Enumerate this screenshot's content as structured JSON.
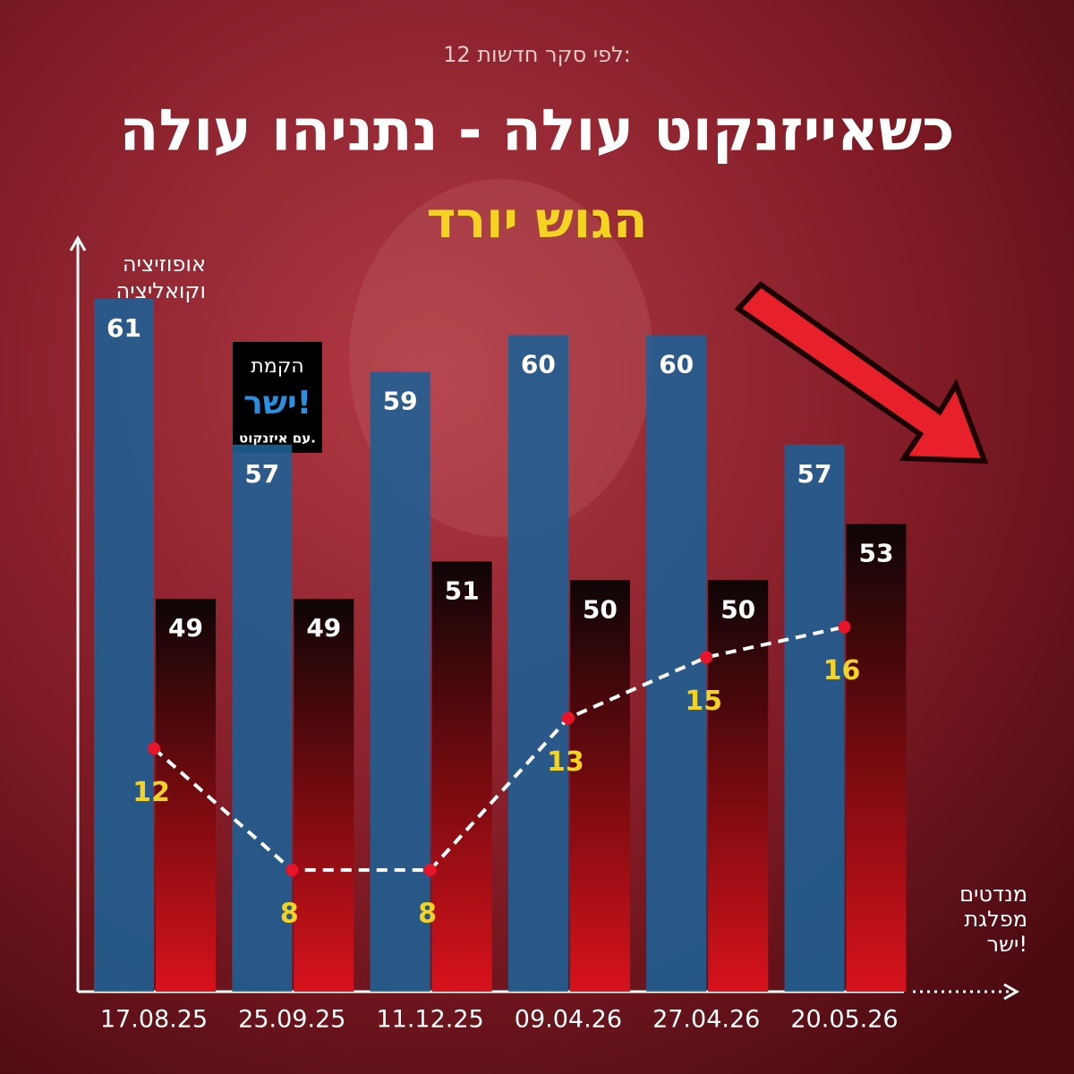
{
  "chart_data": {
    "type": "bar_line",
    "note": "לפי סקר חדשות 12:",
    "title": "כשאייזנקוט עולה - נתניהו עולה",
    "subtitle": "הגוש יורד",
    "ylabel": "אופוזיציה וקואליציה",
    "annotations": [
      "הקמת",
      "ישר!",
      "עם איזנקוט."
    ],
    "categories": [
      "17.08.25",
      "25.09.25",
      "11.12.25",
      "09.04.26",
      "27.04.26",
      "20.05.26"
    ],
    "series": [
      {
        "kind": "bar",
        "color": "#1f5f93",
        "values": [
          61,
          57,
          59,
          60,
          60,
          57
        ],
        "ylim": [
          42,
          62
        ]
      },
      {
        "kind": "bar",
        "color": "#c8101a",
        "values": [
          49,
          49,
          51,
          50,
          50,
          53
        ],
        "ylim": [
          28,
          67
        ]
      },
      {
        "kind": "line",
        "name": "מנדטים מפלגת ישר!",
        "color": "#ffffff",
        "marker_color": "#e8152a",
        "label_color": "#f5d321",
        "values": [
          12,
          8,
          8,
          13,
          15,
          16
        ],
        "ylim": [
          4,
          28
        ]
      }
    ]
  }
}
